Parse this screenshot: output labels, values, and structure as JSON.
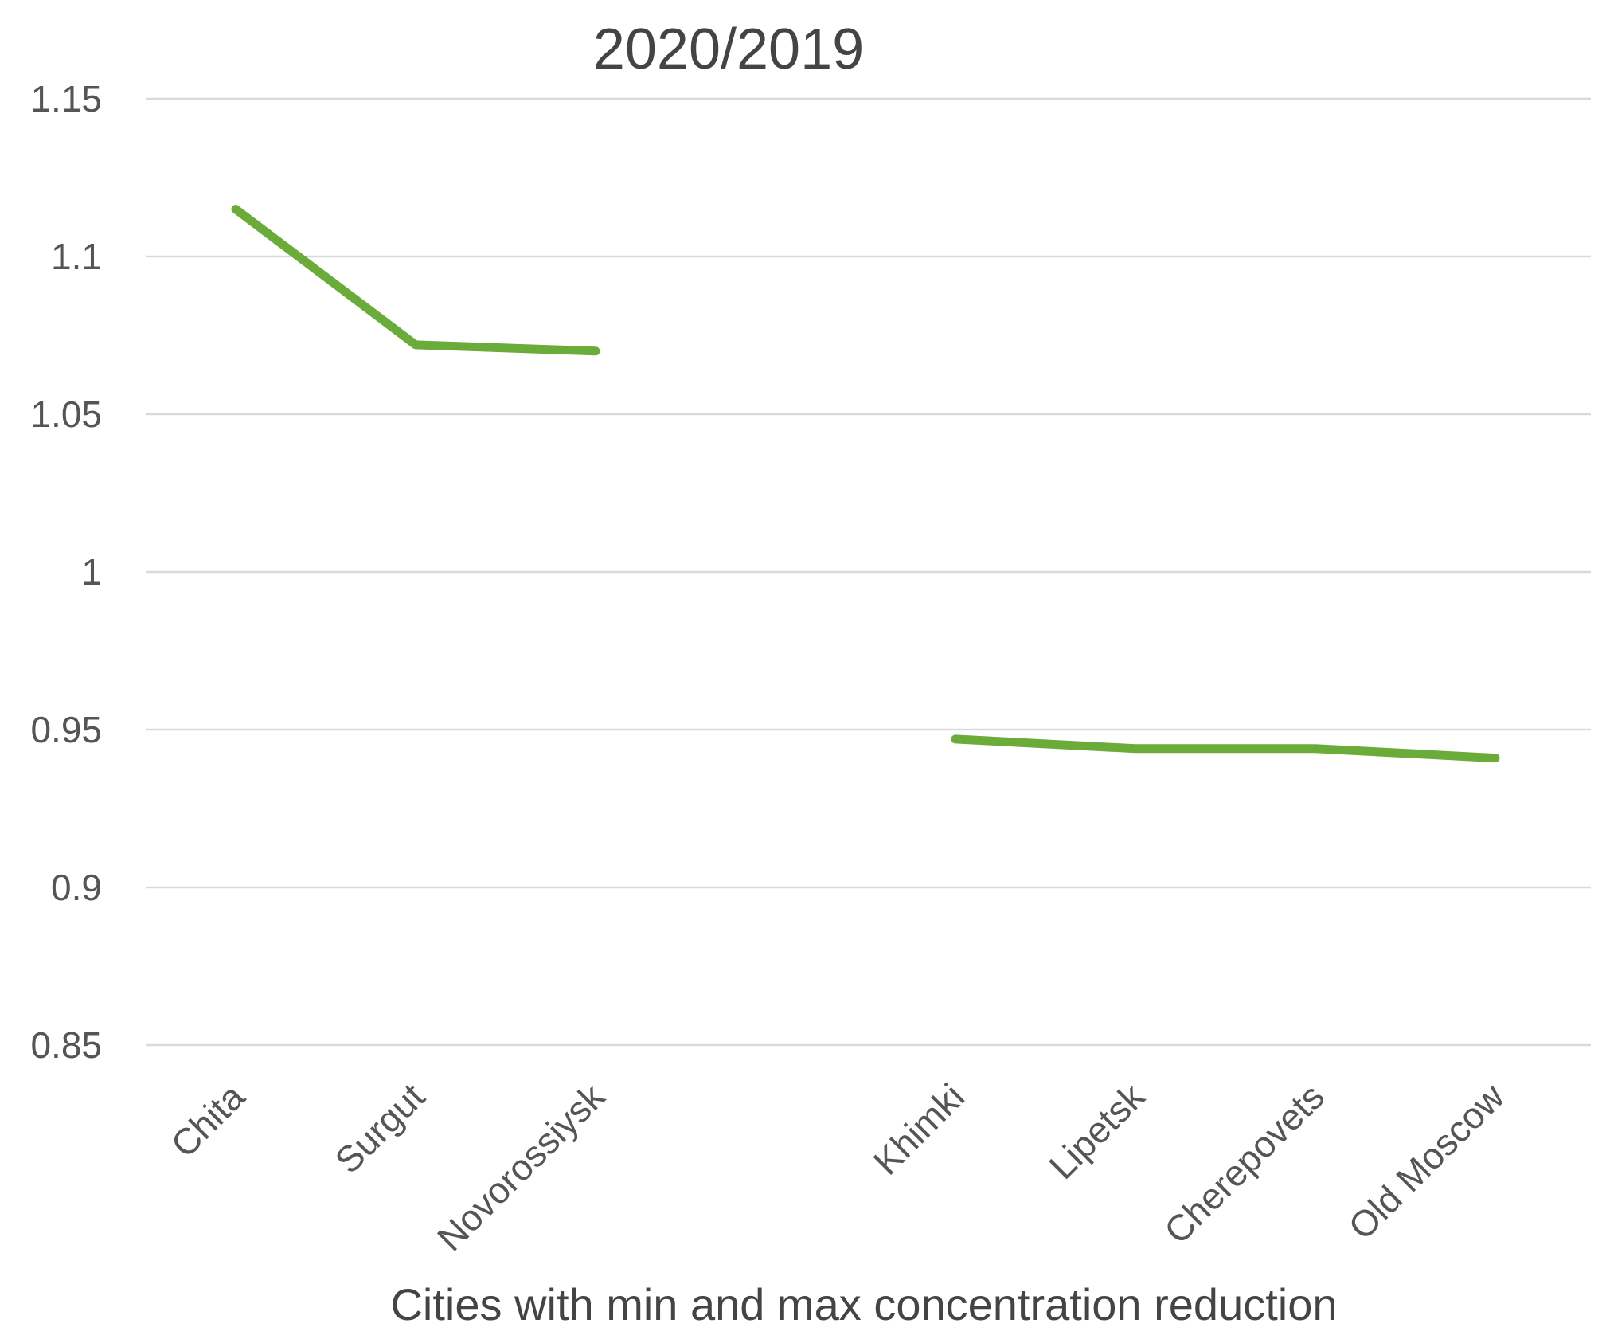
{
  "chart_data": {
    "type": "line",
    "title": "2020/2019",
    "xlabel": "Cities with min and max concentration reduction",
    "ylabel": "",
    "ylim": [
      0.85,
      1.15
    ],
    "yticks": [
      {
        "value": 1.15,
        "label": "1.15"
      },
      {
        "value": 1.1,
        "label": "1.1"
      },
      {
        "value": 1.05,
        "label": "1.05"
      },
      {
        "value": 1.0,
        "label": "1"
      },
      {
        "value": 0.95,
        "label": "0.95"
      },
      {
        "value": 0.9,
        "label": "0.9"
      },
      {
        "value": 0.85,
        "label": "0.85"
      }
    ],
    "grid": true,
    "legend": "none",
    "categories": [
      "Chita",
      "Surgut",
      "Novorossiysk",
      "",
      "Khimki",
      "Lipetsk",
      "Cherepovets",
      "Old Moscow"
    ],
    "series": [
      {
        "name": "2020/2019",
        "color": "#6aab3a",
        "values": [
          1.115,
          1.072,
          1.07,
          null,
          0.947,
          0.944,
          0.944,
          0.941
        ]
      }
    ]
  }
}
